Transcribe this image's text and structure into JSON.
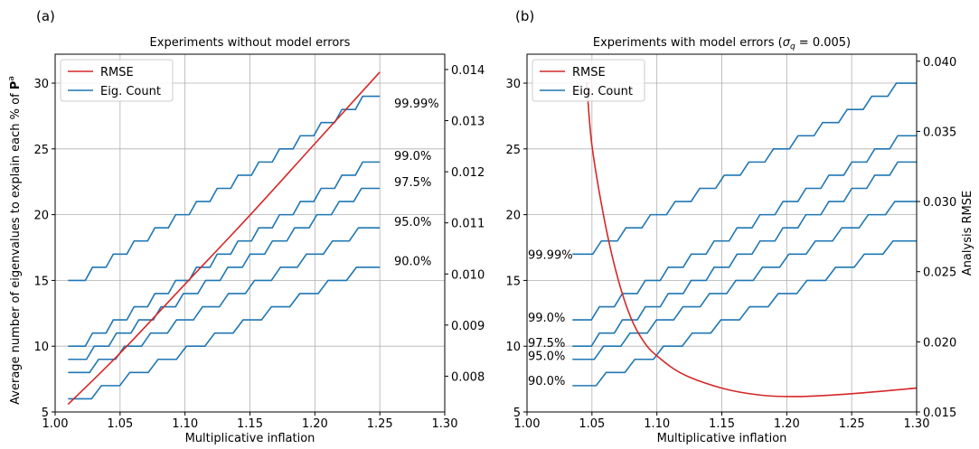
{
  "chart_data": [
    {
      "panel_label": "(a)",
      "type": "line",
      "title": "Experiments without model errors",
      "xlabel": "Multiplicative inflation",
      "ylabel": "Average number of eigenvalues to explain each % of ",
      "ylabel_math": "P",
      "ylabel_sup": "a",
      "y2label": "",
      "xlim": [
        1.0,
        1.3
      ],
      "ylim": [
        5,
        32.2
      ],
      "y2lim": [
        0.0073,
        0.0143
      ],
      "xticks": [
        "1.00",
        "1.05",
        "1.10",
        "1.15",
        "1.20",
        "1.25",
        "1.30"
      ],
      "yticks": [
        "5",
        "10",
        "15",
        "20",
        "25",
        "30"
      ],
      "y2ticks": [
        "0.008",
        "0.009",
        "0.010",
        "0.011",
        "0.012",
        "0.013",
        "0.014"
      ],
      "grid": true,
      "legend": {
        "position": "upper-left",
        "entries": [
          "RMSE",
          "Eig. Count"
        ]
      },
      "colors": {
        "rmse": "#d62728",
        "eig": "#1f77b4"
      },
      "rmse": {
        "x": [
          1.01,
          1.05,
          1.1,
          1.15,
          1.2,
          1.25
        ],
        "y": [
          0.00745,
          0.00845,
          0.0098,
          0.01115,
          0.01255,
          0.01395
        ]
      },
      "eig_series": [
        {
          "label": "99.99%",
          "x0": 1.01,
          "y0": 15,
          "x1": 1.25,
          "y1": 29,
          "label_y": 28.5
        },
        {
          "label": "99.0%",
          "x0": 1.01,
          "y0": 10,
          "x1": 1.25,
          "y1": 24,
          "label_y": 24.5
        },
        {
          "label": "97.5%",
          "x0": 1.01,
          "y0": 9,
          "x1": 1.25,
          "y1": 22,
          "label_y": 22.5
        },
        {
          "label": "95.0%",
          "x0": 1.01,
          "y0": 8,
          "x1": 1.25,
          "y1": 19,
          "label_y": 19.5
        },
        {
          "label": "90.0%",
          "x0": 1.01,
          "y0": 6,
          "x1": 1.25,
          "y1": 16,
          "label_y": 16.5
        }
      ]
    },
    {
      "panel_label": "(b)",
      "type": "line",
      "title": "Experiments with model errors (",
      "title_sym": "σ",
      "title_sub": "q",
      "title_rest": " = 0.005)",
      "xlabel": "Multiplicative inflation",
      "ylabel": "",
      "y2label": "Analysis RMSE",
      "xlim": [
        1.0,
        1.3
      ],
      "ylim": [
        5,
        32.2
      ],
      "y2lim": [
        0.015,
        0.0405
      ],
      "xticks": [
        "1.00",
        "1.05",
        "1.10",
        "1.15",
        "1.20",
        "1.25",
        "1.30"
      ],
      "yticks": [
        "5",
        "10",
        "15",
        "20",
        "25",
        "30"
      ],
      "y2ticks": [
        "0.015",
        "0.020",
        "0.025",
        "0.030",
        "0.035",
        "0.040"
      ],
      "grid": true,
      "legend": {
        "position": "upper-left",
        "entries": [
          "RMSE",
          "Eig. Count"
        ]
      },
      "colors": {
        "rmse": "#d62728",
        "eig": "#1f77b4"
      },
      "rmse": {
        "x": [
          1.046,
          1.05,
          1.06,
          1.07,
          1.08,
          1.09,
          1.1,
          1.12,
          1.15,
          1.18,
          1.21,
          1.25,
          1.3
        ],
        "y": [
          0.0385,
          0.034,
          0.0285,
          0.0245,
          0.0217,
          0.02,
          0.019,
          0.0177,
          0.0167,
          0.0162,
          0.0161,
          0.0163,
          0.0167
        ]
      },
      "eig_series": [
        {
          "label": "99.99%",
          "x0": 1.035,
          "y0": 17,
          "x1": 1.3,
          "y1": 30,
          "label_y": 17
        },
        {
          "label": "99.0%",
          "x0": 1.035,
          "y0": 12,
          "x1": 1.3,
          "y1": 26,
          "label_y": 12.2
        },
        {
          "label": "97.5%",
          "x0": 1.035,
          "y0": 10,
          "x1": 1.3,
          "y1": 24,
          "label_y": 10.3
        },
        {
          "label": "95.0%",
          "x0": 1.035,
          "y0": 9,
          "x1": 1.3,
          "y1": 21,
          "label_y": 9.3
        },
        {
          "label": "90.0%",
          "x0": 1.035,
          "y0": 7,
          "x1": 1.3,
          "y1": 18,
          "label_y": 7.4
        }
      ]
    }
  ]
}
